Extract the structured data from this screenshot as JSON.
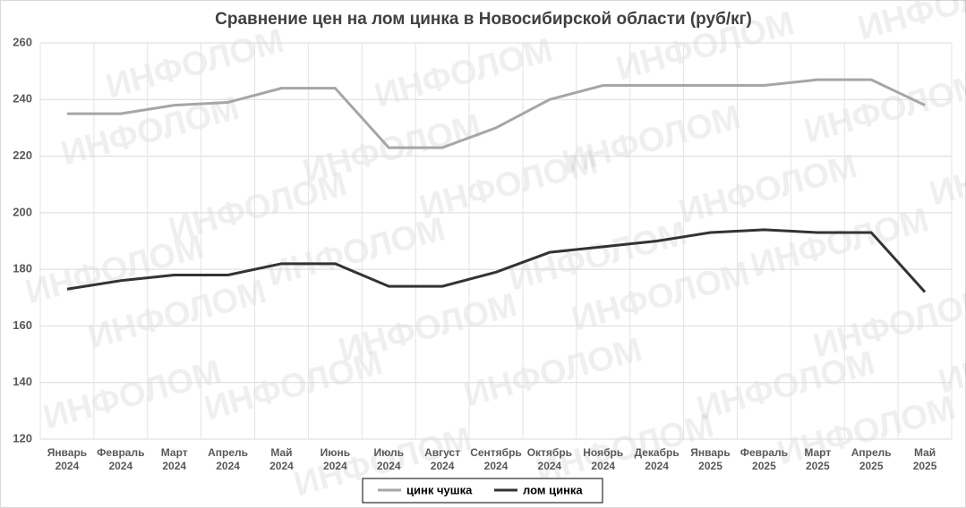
{
  "chart_data": {
    "type": "line",
    "title": "Сравнение цен на лом цинка в Новосибирской области (руб/кг)",
    "watermark": "ИНФОЛОМ",
    "categories": [
      "Январь 2024",
      "Февраль 2024",
      "Март 2024",
      "Апрель 2024",
      "Май 2024",
      "Июнь 2024",
      "Июль 2024",
      "Август 2024",
      "Сентябрь 2024",
      "Октябрь 2024",
      "Ноябрь 2024",
      "Декабрь 2024",
      "Январь 2025",
      "Февраль 2025",
      "Март 2025",
      "Апрель 2025",
      "Май 2025"
    ],
    "series": [
      {
        "name": "цинк чушка",
        "color": "#a6a6a6",
        "values": [
          235,
          235,
          238,
          239,
          244,
          244,
          223,
          223,
          230,
          240,
          245,
          245,
          245,
          245,
          247,
          247,
          238
        ]
      },
      {
        "name": "лом цинка",
        "color": "#333333",
        "values": [
          173,
          176,
          178,
          178,
          182,
          182,
          174,
          174,
          179,
          186,
          188,
          190,
          193,
          194,
          193,
          193,
          172
        ]
      }
    ],
    "ylim": [
      120,
      260
    ],
    "yticks": [
      120,
      140,
      160,
      180,
      200,
      220,
      240,
      260
    ],
    "grid": true,
    "legend": "bottom"
  }
}
